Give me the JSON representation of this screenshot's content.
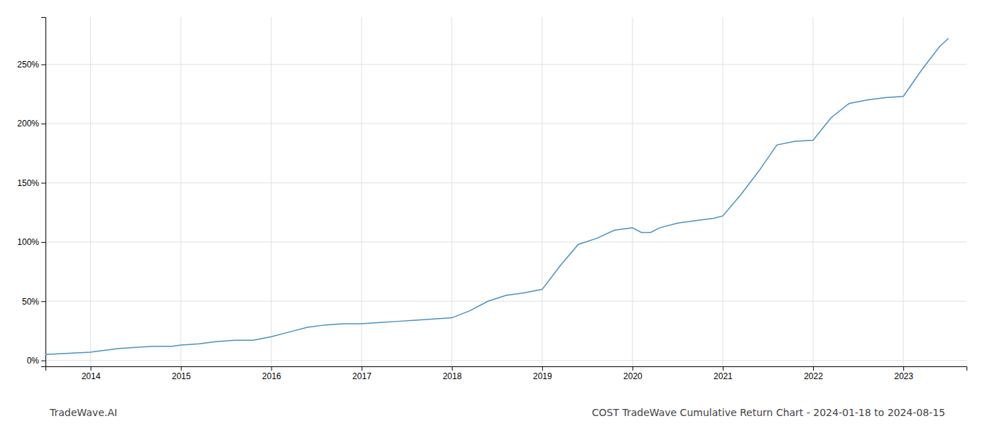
{
  "chart_data": {
    "type": "line",
    "title": "COST TradeWave Cumulative Return Chart - 2024-01-18 to 2024-08-15",
    "annotations": [
      "TradeWave.AI"
    ],
    "color": "#4a90c4",
    "x": [
      2013.5,
      2014.0,
      2014.1,
      2014.2,
      2014.3,
      2014.5,
      2014.7,
      2014.9,
      2015.0,
      2015.2,
      2015.4,
      2015.6,
      2015.8,
      2016.0,
      2016.2,
      2016.4,
      2016.6,
      2016.8,
      2017.0,
      2017.2,
      2017.4,
      2017.6,
      2017.8,
      2018.0,
      2018.2,
      2018.4,
      2018.6,
      2018.8,
      2019.0,
      2019.2,
      2019.4,
      2019.6,
      2019.8,
      2020.0,
      2020.1,
      2020.2,
      2020.3,
      2020.5,
      2020.7,
      2020.9,
      2021.0,
      2021.2,
      2021.4,
      2021.6,
      2021.8,
      2022.0,
      2022.2,
      2022.4,
      2022.6,
      2022.8,
      2023.0,
      2023.2,
      2023.4,
      2023.5
    ],
    "values": [
      5,
      7,
      8,
      9,
      10,
      11,
      12,
      12,
      13,
      14,
      16,
      17,
      17,
      20,
      24,
      28,
      30,
      31,
      31,
      32,
      33,
      34,
      35,
      36,
      42,
      50,
      55,
      57,
      60,
      80,
      98,
      103,
      110,
      112,
      108,
      108,
      112,
      116,
      118,
      120,
      122,
      140,
      160,
      182,
      185,
      186,
      205,
      217,
      220,
      222,
      223,
      245,
      265,
      272
    ],
    "xlim": [
      2013.5,
      2023.7
    ],
    "xticks": [
      2014,
      2015,
      2016,
      2017,
      2018,
      2019,
      2020,
      2021,
      2022,
      2023
    ],
    "ylim": [
      -5,
      290
    ],
    "yticks": [
      {
        "value": 0,
        "label": "0%"
      },
      {
        "value": 50,
        "label": "50%"
      },
      {
        "value": 100,
        "label": "100%"
      },
      {
        "value": 150,
        "label": "150%"
      },
      {
        "value": 200,
        "label": "200%"
      },
      {
        "value": 250,
        "label": "250%"
      }
    ],
    "grid": true
  }
}
